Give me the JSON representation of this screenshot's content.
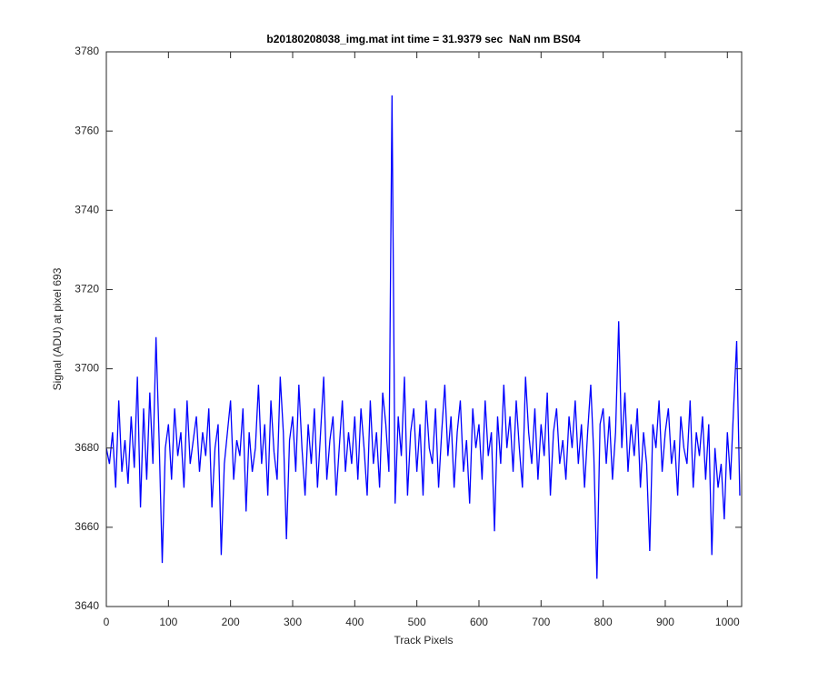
{
  "chart_data": {
    "type": "line",
    "title": "b20180208038_img.mat int time = 31.9379 sec  NaN nm BS04",
    "x_label": "Track Pixels",
    "y_label": "Signal (ADU) at pixel 693",
    "color": "#0000ff",
    "xlim": [
      0,
      1023
    ],
    "xticks": [
      0,
      100,
      200,
      300,
      400,
      500,
      600,
      700,
      800,
      900,
      1000
    ],
    "ylim": [
      3640,
      3780
    ],
    "yticks": [
      3640,
      3660,
      3680,
      3700,
      3720,
      3740,
      3760,
      3780
    ],
    "x": [
      0,
      5,
      10,
      15,
      20,
      25,
      30,
      35,
      40,
      45,
      50,
      55,
      60,
      65,
      70,
      75,
      80,
      85,
      90,
      95,
      100,
      105,
      110,
      115,
      120,
      125,
      130,
      135,
      140,
      145,
      150,
      155,
      160,
      165,
      170,
      175,
      180,
      185,
      190,
      195,
      200,
      205,
      210,
      215,
      220,
      225,
      230,
      235,
      240,
      245,
      250,
      255,
      260,
      265,
      270,
      275,
      280,
      285,
      290,
      295,
      300,
      305,
      310,
      315,
      320,
      325,
      330,
      335,
      340,
      345,
      350,
      355,
      360,
      365,
      370,
      375,
      380,
      385,
      390,
      395,
      400,
      405,
      410,
      415,
      420,
      425,
      430,
      435,
      440,
      445,
      450,
      455,
      460,
      465,
      470,
      475,
      480,
      485,
      490,
      495,
      500,
      505,
      510,
      515,
      520,
      525,
      530,
      535,
      540,
      545,
      550,
      555,
      560,
      565,
      570,
      575,
      580,
      585,
      590,
      595,
      600,
      605,
      610,
      615,
      620,
      625,
      630,
      635,
      640,
      645,
      650,
      655,
      660,
      665,
      670,
      675,
      680,
      685,
      690,
      695,
      700,
      705,
      710,
      715,
      720,
      725,
      730,
      735,
      740,
      745,
      750,
      755,
      760,
      765,
      770,
      775,
      780,
      785,
      790,
      795,
      800,
      805,
      810,
      815,
      820,
      825,
      830,
      835,
      840,
      845,
      850,
      855,
      860,
      865,
      870,
      875,
      880,
      885,
      890,
      895,
      900,
      905,
      910,
      915,
      920,
      925,
      930,
      935,
      940,
      945,
      950,
      955,
      960,
      965,
      970,
      975,
      980,
      985,
      990,
      995,
      1000,
      1005,
      1010,
      1015,
      1020
    ],
    "values": [
      3680,
      3676,
      3684,
      3670,
      3692,
      3674,
      3682,
      3671,
      3688,
      3675,
      3698,
      3665,
      3690,
      3672,
      3694,
      3676,
      3708,
      3682,
      3651,
      3680,
      3686,
      3672,
      3690,
      3678,
      3684,
      3670,
      3692,
      3676,
      3682,
      3688,
      3674,
      3684,
      3678,
      3690,
      3665,
      3680,
      3686,
      3653,
      3676,
      3684,
      3692,
      3672,
      3682,
      3678,
      3690,
      3664,
      3684,
      3674,
      3680,
      3696,
      3676,
      3686,
      3668,
      3692,
      3679,
      3672,
      3698,
      3684,
      3657,
      3682,
      3688,
      3674,
      3696,
      3680,
      3668,
      3686,
      3676,
      3690,
      3670,
      3684,
      3698,
      3672,
      3682,
      3688,
      3668,
      3680,
      3692,
      3674,
      3684,
      3676,
      3688,
      3672,
      3690,
      3680,
      3668,
      3692,
      3676,
      3684,
      3670,
      3694,
      3686,
      3674,
      3769,
      3666,
      3688,
      3678,
      3698,
      3668,
      3684,
      3690,
      3674,
      3686,
      3668,
      3692,
      3680,
      3676,
      3690,
      3670,
      3684,
      3696,
      3678,
      3688,
      3670,
      3684,
      3692,
      3674,
      3682,
      3666,
      3690,
      3680,
      3686,
      3672,
      3692,
      3678,
      3684,
      3659,
      3688,
      3676,
      3696,
      3680,
      3688,
      3674,
      3692,
      3680,
      3670,
      3698,
      3684,
      3676,
      3690,
      3672,
      3686,
      3678,
      3694,
      3668,
      3684,
      3690,
      3676,
      3682,
      3672,
      3688,
      3680,
      3692,
      3676,
      3686,
      3670,
      3684,
      3696,
      3678,
      3647,
      3686,
      3690,
      3676,
      3688,
      3672,
      3684,
      3712,
      3680,
      3694,
      3674,
      3686,
      3678,
      3690,
      3670,
      3684,
      3676,
      3654,
      3686,
      3680,
      3692,
      3674,
      3684,
      3690,
      3676,
      3682,
      3668,
      3688,
      3680,
      3676,
      3692,
      3670,
      3684,
      3678,
      3688,
      3672,
      3686,
      3653,
      3680,
      3670,
      3676,
      3662,
      3684,
      3672,
      3690,
      3707,
      3668
    ]
  }
}
